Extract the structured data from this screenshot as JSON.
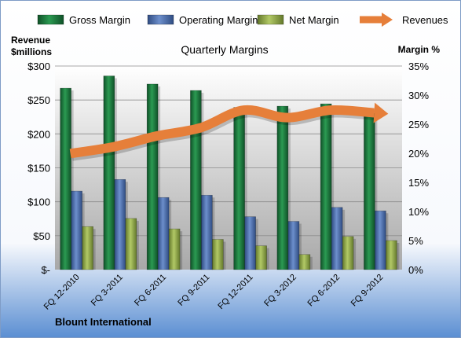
{
  "chart_data": {
    "type": "bar",
    "title": "Quarterly Margins",
    "left_axis_title": "Revenue\n$millions",
    "right_axis_title": "Margin %",
    "footer": "Blount International",
    "categories": [
      "FQ 12-2010",
      "FQ 3-2011",
      "FQ 6-2011",
      "FQ 9-2011",
      "FQ 12-2011",
      "FQ 3-2012",
      "FQ 6-2012",
      "FQ 9-2012"
    ],
    "left_axis": {
      "min": 0,
      "max": 300,
      "step": 50,
      "tick_labels": [
        "$-",
        "$50",
        "$100",
        "$150",
        "$200",
        "$250",
        "$300"
      ]
    },
    "right_axis": {
      "min": 0,
      "max": 35,
      "step": 5,
      "tick_labels": [
        "0%",
        "5%",
        "10%",
        "15%",
        "20%",
        "25%",
        "30%",
        "35%"
      ]
    },
    "legend_position": "top",
    "series": [
      {
        "name": "Gross Margin",
        "type": "bar",
        "axis": "right",
        "color": "#1E7A3C",
        "values": [
          31.2,
          33.3,
          31.9,
          30.8,
          27.9,
          28.1,
          28.5,
          26.9
        ]
      },
      {
        "name": "Operating Margin",
        "type": "bar",
        "axis": "right",
        "color": "#4F70B0",
        "values": [
          13.5,
          15.5,
          12.4,
          12.8,
          9.1,
          8.3,
          10.7,
          10.1
        ]
      },
      {
        "name": "Net Margin",
        "type": "bar",
        "axis": "right",
        "color": "#93AC4A",
        "values": [
          7.4,
          8.8,
          7.0,
          5.2,
          4.1,
          2.6,
          5.7,
          5.0
        ]
      },
      {
        "name": "Revenues",
        "type": "line",
        "axis": "left",
        "color": "#E67F3A",
        "values": [
          171,
          181,
          197,
          209,
          235,
          224,
          235,
          231
        ]
      }
    ]
  }
}
